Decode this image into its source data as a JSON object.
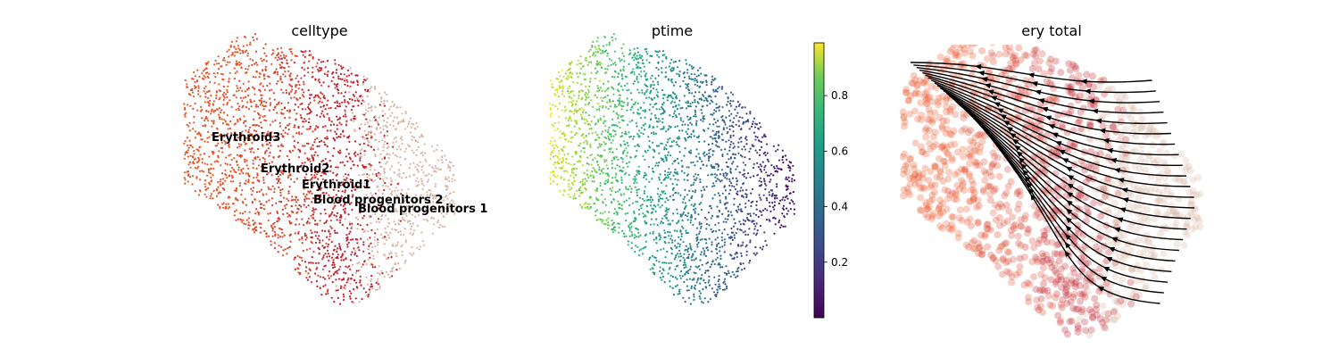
{
  "chart_data": [
    {
      "type": "scatter",
      "title": "celltype",
      "legend": "on data",
      "categories": [
        "Erythroid3",
        "Erythroid2",
        "Erythroid1",
        "Blood progenitors 2",
        "Blood progenitors 1"
      ],
      "colors": {
        "Erythroid3": "#e8562a",
        "Erythroid2": "#d7452f",
        "Erythroid1": "#c0202c",
        "Blood progenitors 2": "#d7b2a0",
        "Blood progenitors 1": "#d9b7a6"
      }
    },
    {
      "type": "scatter",
      "title": "ptime",
      "colormap": "viridis",
      "colorbar": {
        "range": [
          0.0,
          0.99
        ],
        "ticks": [
          0.2,
          0.4,
          0.6,
          0.8
        ],
        "tick_labels": [
          "0.2",
          "0.4",
          "0.6",
          "0.8"
        ]
      }
    },
    {
      "type": "scatter",
      "title": "ery total",
      "overlay": "velocity streamlines",
      "colors": {
        "streamline": "#000000"
      }
    }
  ]
}
